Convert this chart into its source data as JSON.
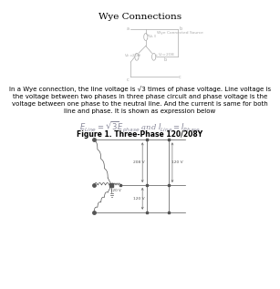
{
  "title": "Wye Connections",
  "body_text_lines": [
    "In a Wye connection, the line voltage is √3 times of phase voltage. Line voltage is",
    "the voltage between two phases in three phase circuit and phase voltage is the",
    "voltage between one phase to the neutral line. And the current is same for both",
    "line and phase. It is shown as expression below"
  ],
  "formula": "$E_{Line} = \\sqrt{3}E_{phase}$ and $I_{Line} = I_{Phase}$",
  "figure_label": "Figure 1. Three-Phase 120/208Y",
  "bg_color": "#ffffff",
  "text_color": "#000000",
  "diagram_color": "#aaaaaa",
  "circuit_color": "#555555",
  "body_fontsize": 5.0,
  "title_fontsize": 7.5,
  "formula_fontsize": 6.0,
  "figure_label_fontsize": 5.5,
  "wye_label": "Wye Connected Source"
}
